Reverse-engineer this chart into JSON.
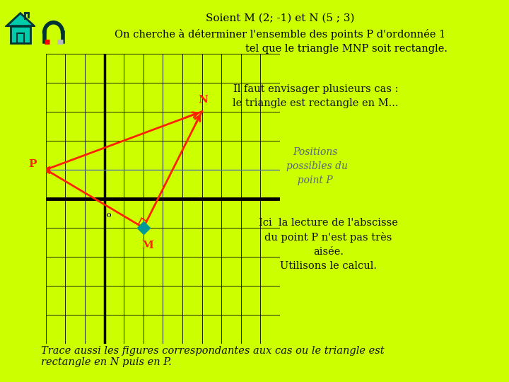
{
  "title1": "Soient M (2; -1) et N (5 ; 3)",
  "title2": "On cherche à déterminer l'ensemble des points P d'ordonnée 1",
  "title3": "tel que le triangle MNP soit rectangle.",
  "bg_color": "#ccff00",
  "grid_bg": "#ccff33",
  "text1": "Il faut envisager plusieurs cas :",
  "text2": "le triangle est rectangle en M...",
  "text3_line1": "Positions",
  "text3_line2": "possibles du",
  "text3_line3": "  point P",
  "text4_line1": "Ici  la lecture de l'abscisse",
  "text4_line2": "du point P n'est pas très",
  "text4_line3": "aisée.",
  "text4_line4": "Utilisons le calcul.",
  "text5": "Trace aussi les figures correspondantes aux cas ou le triangle est\nrectangle en N puis en P.",
  "M": [
    2,
    -1
  ],
  "N": [
    5,
    3
  ],
  "P": [
    -3,
    1
  ],
  "x_min": -3,
  "x_max": 9,
  "y_min": -5,
  "y_max": 5,
  "triangle_color": "#ff2200",
  "M_color": "#009999",
  "line_y1_color": "#5577aa",
  "label_color": "#ff2200",
  "icon_bg": "#00ccaa"
}
